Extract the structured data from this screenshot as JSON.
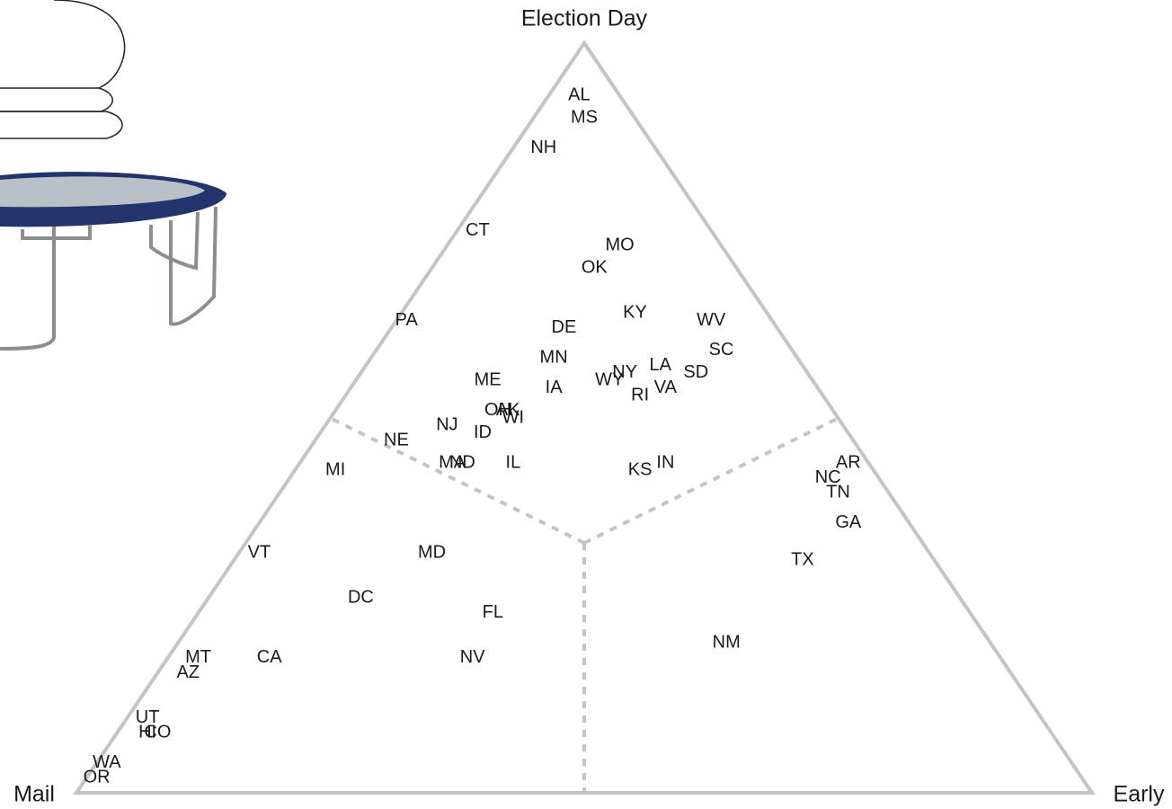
{
  "chart_data": {
    "type": "ternary",
    "corners": {
      "top": "Election Day",
      "left": "Mail",
      "right": "Early"
    },
    "points": [
      {
        "label": "AL",
        "mail": 4,
        "election_day": 93,
        "early": 3
      },
      {
        "label": "MS",
        "mail": 5,
        "election_day": 90,
        "early": 5
      },
      {
        "label": "NH",
        "mail": 11,
        "election_day": 86,
        "early": 3
      },
      {
        "label": "CT",
        "mail": 23,
        "election_day": 75,
        "early": 2
      },
      {
        "label": "MO",
        "mail": 10,
        "election_day": 73,
        "early": 17
      },
      {
        "label": "OK",
        "mail": 14,
        "election_day": 70,
        "early": 16
      },
      {
        "label": "PA",
        "mail": 36,
        "election_day": 63,
        "early": 1
      },
      {
        "label": "DE",
        "mail": 21,
        "election_day": 62,
        "early": 17
      },
      {
        "label": "KY",
        "mail": 13,
        "election_day": 64,
        "early": 23
      },
      {
        "label": "WV",
        "mail": 6,
        "election_day": 63,
        "early": 31
      },
      {
        "label": "SC",
        "mail": 7,
        "election_day": 59,
        "early": 34
      },
      {
        "label": "SD",
        "mail": 11,
        "election_day": 56,
        "early": 33
      },
      {
        "label": "LA",
        "mail": 14,
        "election_day": 57,
        "early": 29
      },
      {
        "label": "VA",
        "mail": 15,
        "election_day": 54,
        "early": 31
      },
      {
        "label": "RI",
        "mail": 18,
        "election_day": 53,
        "early": 29
      },
      {
        "label": "NY",
        "mail": 18,
        "election_day": 56,
        "early": 26
      },
      {
        "label": "WY",
        "mail": 20,
        "election_day": 55,
        "early": 25
      },
      {
        "label": "MN",
        "mail": 24,
        "election_day": 58,
        "early": 18
      },
      {
        "label": "IA",
        "mail": 26,
        "election_day": 54,
        "early": 20
      },
      {
        "label": "ME",
        "mail": 32,
        "election_day": 55,
        "early": 13
      },
      {
        "label": "AK",
        "mail": 32,
        "election_day": 51,
        "early": 17
      },
      {
        "label": "OH",
        "mail": 33,
        "election_day": 51,
        "early": 16
      },
      {
        "label": "WI",
        "mail": 32,
        "election_day": 50,
        "early": 18
      },
      {
        "label": "NJ",
        "mail": 39,
        "election_day": 49,
        "early": 12
      },
      {
        "label": "ID",
        "mail": 36,
        "election_day": 48,
        "early": 16
      },
      {
        "label": "NE",
        "mail": 45,
        "election_day": 47,
        "early": 8
      },
      {
        "label": "MA",
        "mail": 41,
        "election_day": 44,
        "early": 15
      },
      {
        "label": "ND",
        "mail": 40,
        "election_day": 44,
        "early": 16
      },
      {
        "label": "IL",
        "mail": 35,
        "election_day": 44,
        "early": 21
      },
      {
        "label": "MI",
        "mail": 53,
        "election_day": 43,
        "early": 4
      },
      {
        "label": "KS",
        "mail": 23,
        "election_day": 43,
        "early": 34
      },
      {
        "label": "IN",
        "mail": 20,
        "election_day": 44,
        "early": 36
      },
      {
        "label": "AR",
        "mail": 2,
        "election_day": 44,
        "early": 54
      },
      {
        "label": "NC",
        "mail": 5,
        "election_day": 42,
        "early": 53
      },
      {
        "label": "TN",
        "mail": 5,
        "election_day": 40,
        "early": 55
      },
      {
        "label": "GA",
        "mail": 6,
        "election_day": 36,
        "early": 58
      },
      {
        "label": "TX",
        "mail": 13,
        "election_day": 31,
        "early": 56
      },
      {
        "label": "VT",
        "mail": 66,
        "election_day": 32,
        "early": 2
      },
      {
        "label": "MD",
        "mail": 49,
        "election_day": 32,
        "early": 19
      },
      {
        "label": "DC",
        "mail": 59,
        "election_day": 26,
        "early": 15
      },
      {
        "label": "FL",
        "mail": 47,
        "election_day": 24,
        "early": 29
      },
      {
        "label": "NV",
        "mail": 52,
        "election_day": 18,
        "early": 30
      },
      {
        "label": "NM",
        "mail": 26,
        "election_day": 20,
        "early": 54
      },
      {
        "label": "MT",
        "mail": 79,
        "election_day": 18,
        "early": 3
      },
      {
        "label": "AZ",
        "mail": 81,
        "election_day": 16,
        "early": 3
      },
      {
        "label": "CA",
        "mail": 72,
        "election_day": 18,
        "early": 10
      },
      {
        "label": "UT",
        "mail": 88,
        "election_day": 10,
        "early": 2
      },
      {
        "label": "HI",
        "mail": 89,
        "election_day": 8,
        "early": 3
      },
      {
        "label": "CO",
        "mail": 88,
        "election_day": 8,
        "early": 4
      },
      {
        "label": "WA",
        "mail": 95,
        "election_day": 4,
        "early": 1
      },
      {
        "label": "OR",
        "mail": 97,
        "election_day": 2,
        "early": 1
      }
    ]
  }
}
